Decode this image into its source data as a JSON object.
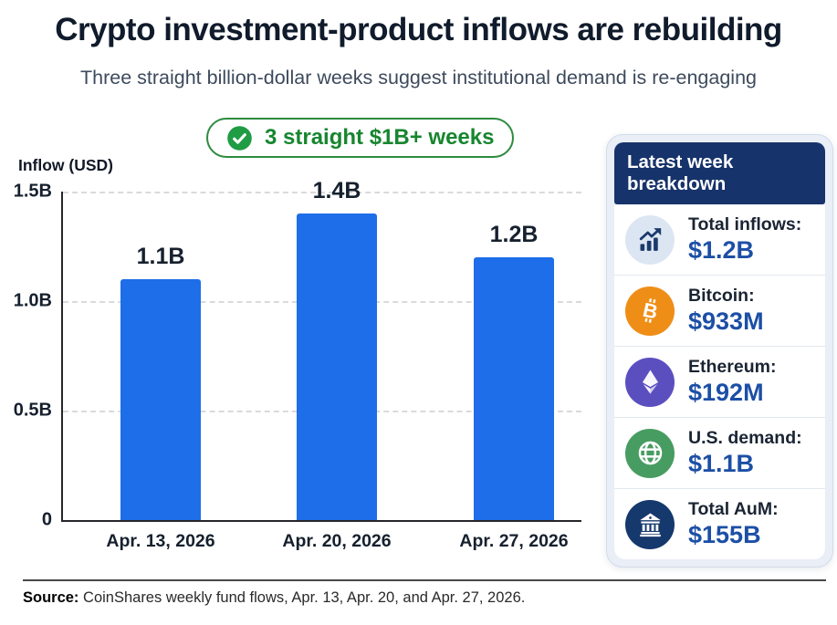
{
  "header": {
    "title": "Crypto investment-product inflows are rebuilding",
    "subtitle": "Three straight billion-dollar weeks suggest institutional demand is re-engaging"
  },
  "badge": {
    "label": "3 straight $1B+ weeks",
    "icon": "check-circle-icon",
    "color": "#17862f"
  },
  "chart_data": {
    "type": "bar",
    "title": "",
    "xlabel": "",
    "ylabel": "Inflow (USD)",
    "categories": [
      "Apr. 13, 2026",
      "Apr. 20, 2026",
      "Apr. 27, 2026"
    ],
    "values": [
      1.1,
      1.4,
      1.2
    ],
    "value_labels": [
      "1.1B",
      "1.4B",
      "1.2B"
    ],
    "yticks": [
      "1.5B",
      "1.0B",
      "0.5B",
      "0"
    ],
    "ylim": [
      0,
      1.5
    ],
    "grid": "horizontal-dashed",
    "legend": "none",
    "bar_color": "#1d6ee8"
  },
  "panel": {
    "header": "Latest week breakdown",
    "items": [
      {
        "icon": "chart-up-icon",
        "label": "Total inflows:",
        "value": "$1.2B",
        "icon_bg": "#dce6f3",
        "icon_fg": "#1b3a6b"
      },
      {
        "icon": "bitcoin-icon",
        "label": "Bitcoin:",
        "value": "$933M",
        "icon_bg": "#ef8e17",
        "icon_fg": "#ffffff"
      },
      {
        "icon": "ethereum-icon",
        "label": "Ethereum:",
        "value": "$192M",
        "icon_bg": "#5b4fc0",
        "icon_fg": "#ffffff"
      },
      {
        "icon": "globe-icon",
        "label": "U.S. demand:",
        "value": "$1.1B",
        "icon_bg": "#479c61",
        "icon_fg": "#ffffff"
      },
      {
        "icon": "bank-icon",
        "label": "Total AuM:",
        "value": "$155B",
        "icon_bg": "#15386d",
        "icon_fg": "#ffffff"
      }
    ],
    "value_color": "#1c4fa6"
  },
  "footer": {
    "source_label": "Source:",
    "source_text": " CoinShares weekly fund flows, Apr. 13, Apr. 20, and Apr. 27, 2026."
  }
}
